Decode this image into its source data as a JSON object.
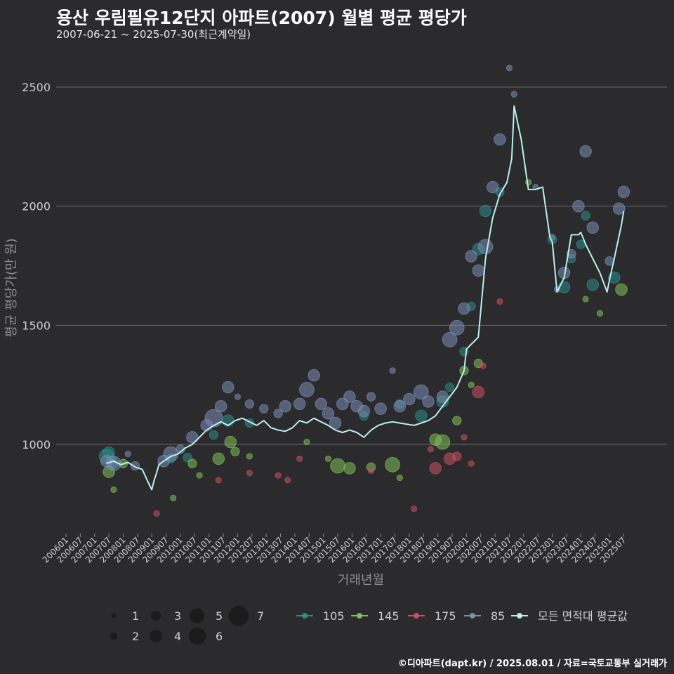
{
  "header": {
    "title": "용산 우림필유12단지 아파트(2007) 월별 평균 평당가",
    "subtitle": "2007-06-21 ~ 2025-07-30(최근계약일)"
  },
  "footer": {
    "credit": "©디아파트(dapt.kr) / 2025.08.01 / 자료=국토교통부 실거래가"
  },
  "colors": {
    "background": "#2b2b2d",
    "grid": "#6b6b6b",
    "105": "#2e8b8b",
    "145": "#7fbf5a",
    "175": "#c9505c",
    "85": "#7a8db5",
    "avg": "#b8f0ec"
  },
  "chart_data": {
    "type": "scatter",
    "title": "용산 우림필유12단지 아파트(2007) 월별 평균 평당가",
    "subtitle": "2007-06-21 ~ 2025-07-30(최근계약일)",
    "xlabel": "거래년월",
    "ylabel": "평균 평당가(만 원)",
    "ylim": [
      660,
      2620
    ],
    "yticks": [
      1000,
      1500,
      2000,
      2500
    ],
    "x_categories": [
      "200601",
      "200607",
      "200701",
      "200707",
      "200801",
      "200807",
      "200901",
      "200907",
      "201001",
      "201007",
      "201101",
      "201107",
      "201201",
      "201207",
      "201301",
      "201307",
      "201401",
      "201407",
      "201501",
      "201507",
      "201601",
      "201607",
      "201701",
      "201707",
      "201801",
      "201807",
      "201901",
      "201907",
      "202001",
      "202007",
      "202101",
      "202107",
      "202201",
      "202207",
      "202301",
      "202307",
      "202401",
      "202407",
      "202501",
      "202507"
    ],
    "grid": true,
    "size_legend": {
      "values": [
        1,
        2,
        3,
        4,
        5,
        6,
        7
      ]
    },
    "color_legend": [
      "105",
      "145",
      "175",
      "85",
      "모든 면적대 평균값"
    ],
    "average_line": {
      "name": "모든 면적대 평균값",
      "x": [
        "2007-06",
        "2007-09",
        "2007-12",
        "2008-03",
        "2008-06",
        "2008-09",
        "2008-12",
        "2009-01",
        "2009-02",
        "2009-03",
        "2009-04",
        "2009-06",
        "2009-09",
        "2009-12",
        "2010-03",
        "2010-06",
        "2010-09",
        "2010-12",
        "2011-03",
        "2011-06",
        "2011-09",
        "2011-12",
        "2012-03",
        "2012-06",
        "2012-09",
        "2012-12",
        "2013-03",
        "2013-06",
        "2013-09",
        "2013-12",
        "2014-03",
        "2014-06",
        "2014-09",
        "2014-12",
        "2015-03",
        "2015-06",
        "2015-09",
        "2015-12",
        "2016-03",
        "2016-06",
        "2016-09",
        "2016-12",
        "2017-03",
        "2017-06",
        "2017-09",
        "2017-12",
        "2018-03",
        "2018-06",
        "2018-09",
        "2018-12",
        "2019-03",
        "2019-06",
        "2019-09",
        "2019-12",
        "2020-01",
        "2020-03",
        "2020-06",
        "2020-09",
        "2020-12",
        "2021-03",
        "2021-06",
        "2021-08",
        "2021-09",
        "2021-12",
        "2022-03",
        "2022-06",
        "2022-09",
        "2022-12",
        "2023-01",
        "2023-03",
        "2023-06",
        "2023-09",
        "2023-12",
        "2024-01",
        "2024-03",
        "2024-06",
        "2024-09",
        "2024-12",
        "2025-01",
        "2025-03",
        "2025-06",
        "2025-07"
      ],
      "values": [
        920,
        930,
        915,
        925,
        905,
        895,
        830,
        810,
        850,
        880,
        915,
        930,
        950,
        960,
        985,
        1000,
        1030,
        1060,
        1080,
        1095,
        1080,
        1100,
        1110,
        1095,
        1080,
        1100,
        1070,
        1060,
        1055,
        1070,
        1100,
        1090,
        1110,
        1095,
        1080,
        1060,
        1050,
        1060,
        1050,
        1030,
        1060,
        1080,
        1090,
        1095,
        1090,
        1085,
        1080,
        1090,
        1100,
        1120,
        1160,
        1200,
        1240,
        1310,
        1400,
        1420,
        1450,
        1780,
        1950,
        2050,
        2100,
        2200,
        2420,
        2280,
        2070,
        2070,
        2080,
        1870,
        1850,
        1640,
        1700,
        1880,
        1880,
        1890,
        1840,
        1780,
        1720,
        1640,
        1690,
        1780,
        1920,
        1980
      ]
    },
    "series": [
      {
        "name": "105",
        "points": [
          {
            "x": "2007-06",
            "y": 950,
            "n": 4
          },
          {
            "x": "2007-07",
            "y": 965,
            "n": 3
          },
          {
            "x": "2007-08",
            "y": 940,
            "n": 2
          },
          {
            "x": "2007-09",
            "y": 920,
            "n": 2
          },
          {
            "x": "2009-09",
            "y": 940,
            "n": 2
          },
          {
            "x": "2010-04",
            "y": 945,
            "n": 2
          },
          {
            "x": "2011-03",
            "y": 1040,
            "n": 2
          },
          {
            "x": "2011-09",
            "y": 1100,
            "n": 3
          },
          {
            "x": "2012-06",
            "y": 1090,
            "n": 2
          },
          {
            "x": "2016-06",
            "y": 1120,
            "n": 2
          },
          {
            "x": "2017-09",
            "y": 1170,
            "n": 2
          },
          {
            "x": "2018-06",
            "y": 1120,
            "n": 3
          },
          {
            "x": "2019-03",
            "y": 1180,
            "n": 3
          },
          {
            "x": "2019-06",
            "y": 1240,
            "n": 2
          },
          {
            "x": "2019-12",
            "y": 1390,
            "n": 2
          },
          {
            "x": "2020-03",
            "y": 1580,
            "n": 2
          },
          {
            "x": "2020-06",
            "y": 1820,
            "n": 3
          },
          {
            "x": "2020-09",
            "y": 1980,
            "n": 3
          },
          {
            "x": "2021-03",
            "y": 2060,
            "n": 2
          },
          {
            "x": "2023-01",
            "y": 1860,
            "n": 2
          },
          {
            "x": "2023-06",
            "y": 1660,
            "n": 3
          },
          {
            "x": "2023-09",
            "y": 1780,
            "n": 2
          },
          {
            "x": "2024-01",
            "y": 1840,
            "n": 2
          },
          {
            "x": "2024-03",
            "y": 1960,
            "n": 2
          },
          {
            "x": "2024-06",
            "y": 1670,
            "n": 3
          },
          {
            "x": "2025-03",
            "y": 1700,
            "n": 3
          }
        ]
      },
      {
        "name": "145",
        "points": [
          {
            "x": "2007-07",
            "y": 885,
            "n": 3
          },
          {
            "x": "2007-09",
            "y": 810,
            "n": 1
          },
          {
            "x": "2008-01",
            "y": 920,
            "n": 2
          },
          {
            "x": "2009-10",
            "y": 775,
            "n": 1
          },
          {
            "x": "2010-06",
            "y": 920,
            "n": 2
          },
          {
            "x": "2010-09",
            "y": 870,
            "n": 1
          },
          {
            "x": "2011-05",
            "y": 940,
            "n": 3
          },
          {
            "x": "2011-10",
            "y": 1010,
            "n": 3
          },
          {
            "x": "2011-12",
            "y": 970,
            "n": 2
          },
          {
            "x": "2012-06",
            "y": 950,
            "n": 1
          },
          {
            "x": "2014-06",
            "y": 1010,
            "n": 1
          },
          {
            "x": "2015-03",
            "y": 940,
            "n": 1
          },
          {
            "x": "2015-07",
            "y": 910,
            "n": 4
          },
          {
            "x": "2015-12",
            "y": 900,
            "n": 3
          },
          {
            "x": "2016-09",
            "y": 905,
            "n": 2
          },
          {
            "x": "2017-06",
            "y": 915,
            "n": 4
          },
          {
            "x": "2017-09",
            "y": 860,
            "n": 1
          },
          {
            "x": "2018-12",
            "y": 1020,
            "n": 3
          },
          {
            "x": "2019-03",
            "y": 1010,
            "n": 4
          },
          {
            "x": "2019-09",
            "y": 1100,
            "n": 2
          },
          {
            "x": "2019-12",
            "y": 1310,
            "n": 2
          },
          {
            "x": "2020-03",
            "y": 1250,
            "n": 1
          },
          {
            "x": "2020-06",
            "y": 1340,
            "n": 2
          },
          {
            "x": "2022-03",
            "y": 2100,
            "n": 1
          },
          {
            "x": "2024-03",
            "y": 1610,
            "n": 1
          },
          {
            "x": "2024-09",
            "y": 1550,
            "n": 1
          },
          {
            "x": "2025-06",
            "y": 1650,
            "n": 3
          }
        ]
      },
      {
        "name": "175",
        "points": [
          {
            "x": "2009-03",
            "y": 710,
            "n": 1
          },
          {
            "x": "2011-05",
            "y": 850,
            "n": 1
          },
          {
            "x": "2012-06",
            "y": 880,
            "n": 1
          },
          {
            "x": "2013-06",
            "y": 870,
            "n": 1
          },
          {
            "x": "2013-10",
            "y": 850,
            "n": 1
          },
          {
            "x": "2014-03",
            "y": 940,
            "n": 1
          },
          {
            "x": "2016-09",
            "y": 890,
            "n": 1
          },
          {
            "x": "2018-03",
            "y": 730,
            "n": 1
          },
          {
            "x": "2018-10",
            "y": 980,
            "n": 1
          },
          {
            "x": "2018-12",
            "y": 900,
            "n": 3
          },
          {
            "x": "2019-06",
            "y": 940,
            "n": 3
          },
          {
            "x": "2019-09",
            "y": 950,
            "n": 2
          },
          {
            "x": "2019-12",
            "y": 1030,
            "n": 1
          },
          {
            "x": "2020-03",
            "y": 920,
            "n": 1
          },
          {
            "x": "2020-06",
            "y": 1220,
            "n": 3
          },
          {
            "x": "2020-08",
            "y": 1330,
            "n": 1
          },
          {
            "x": "2021-03",
            "y": 1600,
            "n": 1
          }
        ]
      },
      {
        "name": "85",
        "points": [
          {
            "x": "2007-06",
            "y": 930,
            "n": 3
          },
          {
            "x": "2007-09",
            "y": 920,
            "n": 4
          },
          {
            "x": "2008-03",
            "y": 960,
            "n": 1
          },
          {
            "x": "2008-06",
            "y": 910,
            "n": 2
          },
          {
            "x": "2009-06",
            "y": 930,
            "n": 3
          },
          {
            "x": "2009-09",
            "y": 960,
            "n": 4
          },
          {
            "x": "2010-01",
            "y": 980,
            "n": 2
          },
          {
            "x": "2010-06",
            "y": 1030,
            "n": 3
          },
          {
            "x": "2010-12",
            "y": 1080,
            "n": 3
          },
          {
            "x": "2011-03",
            "y": 1110,
            "n": 5
          },
          {
            "x": "2011-06",
            "y": 1160,
            "n": 3
          },
          {
            "x": "2011-09",
            "y": 1240,
            "n": 3
          },
          {
            "x": "2012-01",
            "y": 1200,
            "n": 1
          },
          {
            "x": "2012-06",
            "y": 1170,
            "n": 2
          },
          {
            "x": "2012-12",
            "y": 1150,
            "n": 2
          },
          {
            "x": "2013-06",
            "y": 1130,
            "n": 2
          },
          {
            "x": "2013-09",
            "y": 1160,
            "n": 3
          },
          {
            "x": "2014-03",
            "y": 1170,
            "n": 3
          },
          {
            "x": "2014-06",
            "y": 1230,
            "n": 4
          },
          {
            "x": "2014-09",
            "y": 1290,
            "n": 3
          },
          {
            "x": "2014-12",
            "y": 1170,
            "n": 3
          },
          {
            "x": "2015-03",
            "y": 1130,
            "n": 3
          },
          {
            "x": "2015-06",
            "y": 1090,
            "n": 3
          },
          {
            "x": "2015-09",
            "y": 1170,
            "n": 3
          },
          {
            "x": "2015-12",
            "y": 1200,
            "n": 3
          },
          {
            "x": "2016-03",
            "y": 1160,
            "n": 3
          },
          {
            "x": "2016-06",
            "y": 1140,
            "n": 3
          },
          {
            "x": "2016-09",
            "y": 1200,
            "n": 2
          },
          {
            "x": "2017-01",
            "y": 1150,
            "n": 3
          },
          {
            "x": "2017-06",
            "y": 1310,
            "n": 1
          },
          {
            "x": "2017-09",
            "y": 1160,
            "n": 3
          },
          {
            "x": "2018-01",
            "y": 1190,
            "n": 3
          },
          {
            "x": "2018-06",
            "y": 1220,
            "n": 4
          },
          {
            "x": "2018-09",
            "y": 1180,
            "n": 3
          },
          {
            "x": "2019-03",
            "y": 1200,
            "n": 3
          },
          {
            "x": "2019-06",
            "y": 1440,
            "n": 4
          },
          {
            "x": "2019-09",
            "y": 1490,
            "n": 4
          },
          {
            "x": "2019-12",
            "y": 1570,
            "n": 3
          },
          {
            "x": "2020-03",
            "y": 1790,
            "n": 3
          },
          {
            "x": "2020-06",
            "y": 1730,
            "n": 3
          },
          {
            "x": "2020-09",
            "y": 1830,
            "n": 4
          },
          {
            "x": "2020-12",
            "y": 2080,
            "n": 3
          },
          {
            "x": "2021-03",
            "y": 2280,
            "n": 3
          },
          {
            "x": "2021-07",
            "y": 2580,
            "n": 1
          },
          {
            "x": "2021-09",
            "y": 2470,
            "n": 1
          },
          {
            "x": "2022-06",
            "y": 2080,
            "n": 1
          },
          {
            "x": "2023-01",
            "y": 1870,
            "n": 1
          },
          {
            "x": "2023-03",
            "y": 1650,
            "n": 1
          },
          {
            "x": "2023-06",
            "y": 1720,
            "n": 3
          },
          {
            "x": "2023-09",
            "y": 1800,
            "n": 2
          },
          {
            "x": "2023-12",
            "y": 2000,
            "n": 3
          },
          {
            "x": "2024-03",
            "y": 2230,
            "n": 3
          },
          {
            "x": "2024-06",
            "y": 1910,
            "n": 3
          },
          {
            "x": "2025-01",
            "y": 1770,
            "n": 2
          },
          {
            "x": "2025-05",
            "y": 1990,
            "n": 3
          },
          {
            "x": "2025-07",
            "y": 2060,
            "n": 3
          }
        ]
      }
    ]
  }
}
